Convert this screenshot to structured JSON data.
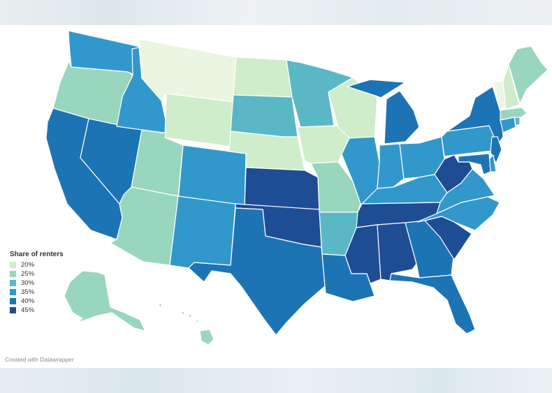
{
  "legend": {
    "title": "Share of renters",
    "items": [
      {
        "label": "20%",
        "color": "#cfeccb"
      },
      {
        "label": "25%",
        "color": "#98d6bd"
      },
      {
        "label": "30%",
        "color": "#5ab8c6"
      },
      {
        "label": "35%",
        "color": "#3298cb"
      },
      {
        "label": "40%",
        "color": "#1d74b5"
      },
      {
        "label": "45%",
        "color": "#1f4d94"
      }
    ]
  },
  "credit": "Created with Datawrapper",
  "states": {
    "WA": 35,
    "OR": 25,
    "CA": 40,
    "NV": 40,
    "ID": 35,
    "MT": 15,
    "WY": 20,
    "UT": 25,
    "AZ": 25,
    "CO": 35,
    "NM": 35,
    "ND": 20,
    "SD": 30,
    "NE": 20,
    "KS": 45,
    "OK": 45,
    "TX": 40,
    "MN": 30,
    "IA": 20,
    "MO": 25,
    "AR": 30,
    "LA": 40,
    "WI": 20,
    "IL": 35,
    "MI": 40,
    "IN": 35,
    "OH": 35,
    "KY": 35,
    "TN": 45,
    "MS": 45,
    "AL": 45,
    "GA": 40,
    "FL": 40,
    "SC": 45,
    "NC": 35,
    "VA": 35,
    "WV": 45,
    "PA": 35,
    "NY": 40,
    "NJ": 40,
    "DE": 35,
    "MD": 40,
    "CT": 35,
    "RI": 30,
    "MA": 25,
    "VT": 15,
    "NH": 20,
    "ME": 25,
    "AK": 25,
    "HI": 25
  },
  "palette": {
    "15": "#eaf6e2",
    "20": "#cfeccb",
    "25": "#98d6bd",
    "30": "#5ab8c6",
    "35": "#3298cb",
    "40": "#1d74b5",
    "45": "#1f4d94"
  }
}
